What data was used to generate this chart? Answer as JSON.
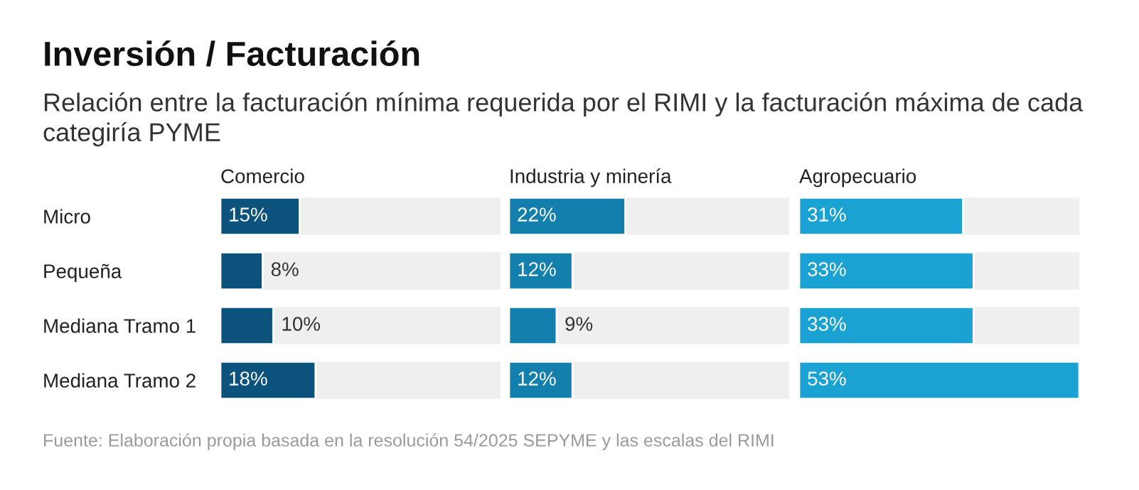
{
  "chart_data": [
    {
      "type": "bar",
      "orientation": "horizontal",
      "title": "Comercio",
      "categories": [
        "Micro",
        "Pequeña",
        "Mediana Tramo 1",
        "Mediana Tramo 2"
      ],
      "values": [
        15,
        8,
        10,
        18
      ],
      "value_labels": [
        "15%",
        "8%",
        "10%",
        "18%"
      ],
      "color": "#0b527c",
      "xlim": [
        0,
        53
      ]
    },
    {
      "type": "bar",
      "orientation": "horizontal",
      "title": "Industria y minería",
      "values": [
        22,
        12,
        9,
        12
      ],
      "value_labels": [
        "22%",
        "12%",
        "9%",
        "12%"
      ],
      "color": "#127fad",
      "xlim": [
        0,
        53
      ]
    },
    {
      "type": "bar",
      "orientation": "horizontal",
      "title": "Agropecuario",
      "values": [
        31,
        33,
        33,
        53
      ],
      "value_labels": [
        "31%",
        "33%",
        "33%",
        "53%"
      ],
      "color": "#1aa3d2",
      "xlim": [
        0,
        53
      ],
      "annotations": [
        "Inversión / Facturación",
        "Relación entre la facturación mínima requerida por el RIMI y la facturación máxima de cada categiría PYME",
        "Fuente: Elaboración propia basada en la resolución 54/2025 SEPYME y las escalas del RIMI"
      ]
    }
  ]
}
